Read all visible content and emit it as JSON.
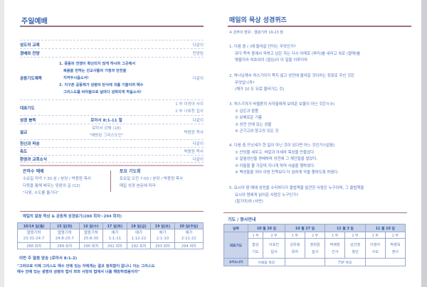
{
  "left": {
    "title": "주일예배",
    "order": [
      {
        "k": "성도의 교제",
        "v": "다같이"
      },
      {
        "k": "경배와 찬양",
        "v": "찬양팀"
      }
    ],
    "prayer": {
      "k": "공동기도제목",
      "lines": [
        "1. 중동의 전쟁이 확산되지 않게 하시며 그곳에서",
        "복음을 전하는 선교사들의 가정과 안전을",
        "지켜주시옵소서!",
        "2. 지구촌 공동체가 성령의 탄식에 귀를 기울이며 예수",
        "그리스도를 바라봄으로 날마다 성화되게 하옵소서!"
      ],
      "v": "다같이"
    },
    "rep_prayer": {
      "k": "대표기도",
      "v1": "1 부  이정아 사모",
      "v2": "2 부  나호창 집사"
    },
    "reading": {
      "k": "성경 봉독",
      "m": "로마서 8:1-11 절",
      "v": "다같이"
    },
    "sermon": {
      "k": "설교",
      "m1": "로마서 강해 (18)",
      "m2": "\"해방된 그리스도인\"",
      "v": "박용원 목사"
    },
    "order2": [
      {
        "k": "헌신과 파송",
        "v": "다같이"
      },
      {
        "k": "축도",
        "v": "박용원 목사"
      },
      {
        "k": "환영과 교회소식",
        "v": "다같이"
      }
    ],
    "wed": {
      "title": "은하수 예배",
      "lines": [
        "수요일 저녁 7:30 분 / 본당 / 박용원 목사",
        "다윗을 통해 배우는 믿음의 길 (12)",
        "\"다윗, 수도를 옮기다\""
      ]
    },
    "sat": {
      "title": "토요 기도회",
      "lines": [
        "토요일 오전 7:00 / 본당 / 박용원 목사",
        "매일 성경 본문에 따라"
      ]
    },
    "reading_plan": {
      "title": "매일의 말씀 묵상 & 공동체 성경읽기(288 회차~294 회차)",
      "days": [
        "10/14 일(월)",
        "15 일(화)",
        "16 일(수)",
        "17 일(목)",
        "18 일(금)",
        "19 일(토)",
        "20 일(주일)"
      ],
      "books": [
        "열왕기하",
        "열왕기하",
        "열왕기하",
        "애가",
        "애가",
        "애가",
        "애가"
      ],
      "refs": [
        "23:31-24:7",
        "24:8-25:7",
        "25:8-30",
        "1:1-11",
        "1:12-22",
        "2:1-10",
        "2:11-22"
      ],
      "counts": [
        "288 회차",
        "289 회차",
        "290 회차",
        "291 회차",
        "292 회차",
        "293 회차",
        "294 회차"
      ]
    },
    "memory": {
      "title": "이번 주 말씀 암송 (로마서 8:1-2)",
      "lines": [
        "\"그러므로 이제 그리스도 예수 안에 있는 자에게는 결코 정죄함이 없나니 이는 그리스도",
        "예수 안에 있는 생명의 성령의 법이 죄와 사망의 법에서 너를 해방하였음이라\""
      ]
    }
  },
  "right": {
    "title": "매일의 묵상 성경퀴즈",
    "range": "※ 금주의 범위 : 열왕기하 19-23 장",
    "questions": [
      {
        "q": "1. 다음 중 (    )에 들어갈 단어는 무엇인가?",
        "lines": [
          "유다 족속 중에서 피하고 남은 자는 다시 아래로 (뿌리)를 내리고 위로 (열매)를",
          "맺을지라 여호와의 (열심)이 이 일을 이루리라"
        ]
      },
      {
        "q": "2. 하나님께서 히스기야가 죽지 않고 성전에 올라갈 것이라는 징표로 주신 것은",
        "lines": [
          "무엇입니까?",
          "(해가 10 도 뒤로 물러가는 것)"
        ]
      },
      {
        "q": "3. 히스기야가 바벨론의 사자들에게 보여준 보물이 아닌 것은?(③)",
        "lines": [
          "① 금은과 향품",
          "② 보배로운 기름",
          "③ 성전 안에 있는 성물",
          "④ 군기고와 창고의 모든 것"
        ]
      },
      {
        "q": "4. 다음 중 므낫세가 한 일이 아닌 것이 있다면 어느 것인가?(없음)",
        "lines": [
          "① 산당을 세우고, 바알과 아세라 목상을 만들었다.",
          "② 일월성신을 경배하며 성전에 그 제단들을 쌓았다.",
          "③ 아들을 불 가운데 지나게 하며 사술을 행하였다.",
          "④ 백성들을 꾀어 이방 민족보다 더 심하게 악을 행하도록 하였다."
        ]
      },
      {
        "q": "5. 요시야 왕 때에 성전을 수리하다가 율법책을 발견한 사람은 누구이며, 그 율법책을",
        "lines": [
          "요시야 왕에게 읽어준 사람은 누구인가?",
          "(힐기야)와 (사반)"
        ]
      }
    ],
    "service": {
      "title": "기도 / 봉사안내",
      "date_label": "날짜",
      "dates": [
        "10 월 20 일",
        "10 월 27 일",
        "11 월 3 일",
        "11 월 10 일"
      ],
      "parts": [
        "1 부",
        "2 부"
      ],
      "rep_label": "대표기도",
      "rep": [
        [
          "합심",
          "기도"
        ],
        [
          "이호진",
          "집사"
        ],
        [
          "성유정",
          "목자"
        ],
        [
          "권회원",
          "집사"
        ],
        [
          "박제판",
          "간사"
        ],
        [
          "김선영",
          "청년"
        ],
        [
          "이정아",
          "사모"
        ],
        [
          "박영옥",
          "권사"
        ]
      ],
      "koin_label": "코이노니아",
      "koin": [
        "아들람 목장",
        "",
        "TSP 목장",
        ""
      ]
    }
  },
  "colors": {
    "text": "#2f5aa6",
    "accent_line": "#9e7081",
    "table_header": "#c9d3ea"
  }
}
